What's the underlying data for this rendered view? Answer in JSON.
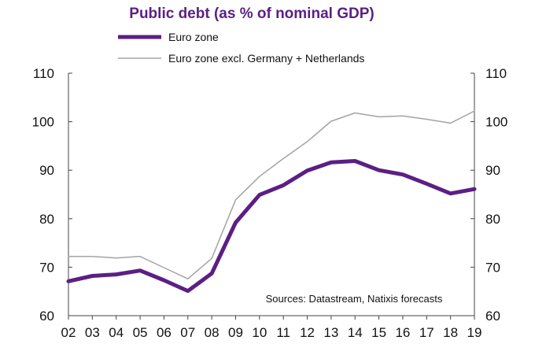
{
  "chart_data": {
    "type": "line",
    "title": "Public debt (as % of nominal GDP)",
    "categories": [
      "02",
      "03",
      "04",
      "05",
      "06",
      "07",
      "08",
      "09",
      "10",
      "11",
      "12",
      "13",
      "14",
      "15",
      "16",
      "17",
      "18",
      "19"
    ],
    "series": [
      {
        "name": "Euro zone",
        "color": "#5b1f84",
        "values": [
          67.1,
          68.2,
          68.5,
          69.3,
          67.3,
          65.1,
          68.7,
          79.2,
          84.9,
          86.9,
          89.9,
          91.6,
          91.9,
          90.0,
          89.1,
          87.2,
          85.2,
          86.1
        ]
      },
      {
        "name": "Euro zone excl. Germany + Netherlands",
        "color": "#a3a3a3",
        "values": [
          72.2,
          72.2,
          71.9,
          72.2,
          69.9,
          67.6,
          71.8,
          83.9,
          88.7,
          92.4,
          95.9,
          100.1,
          101.8,
          101.0,
          101.2,
          100.5,
          99.7,
          102.2
        ]
      }
    ],
    "ylim": [
      60,
      110
    ],
    "yticks": [
      60,
      70,
      80,
      90,
      100,
      110
    ],
    "left_axis_ticks": [
      "60",
      "70",
      "80",
      "90",
      "100",
      "110"
    ],
    "right_axis_ticks": [
      "60",
      "70",
      "80",
      "90",
      "100",
      "110"
    ],
    "annotation": "Sources:  Datastream,  Natixis forecasts",
    "title_color": "#5b1f84"
  }
}
